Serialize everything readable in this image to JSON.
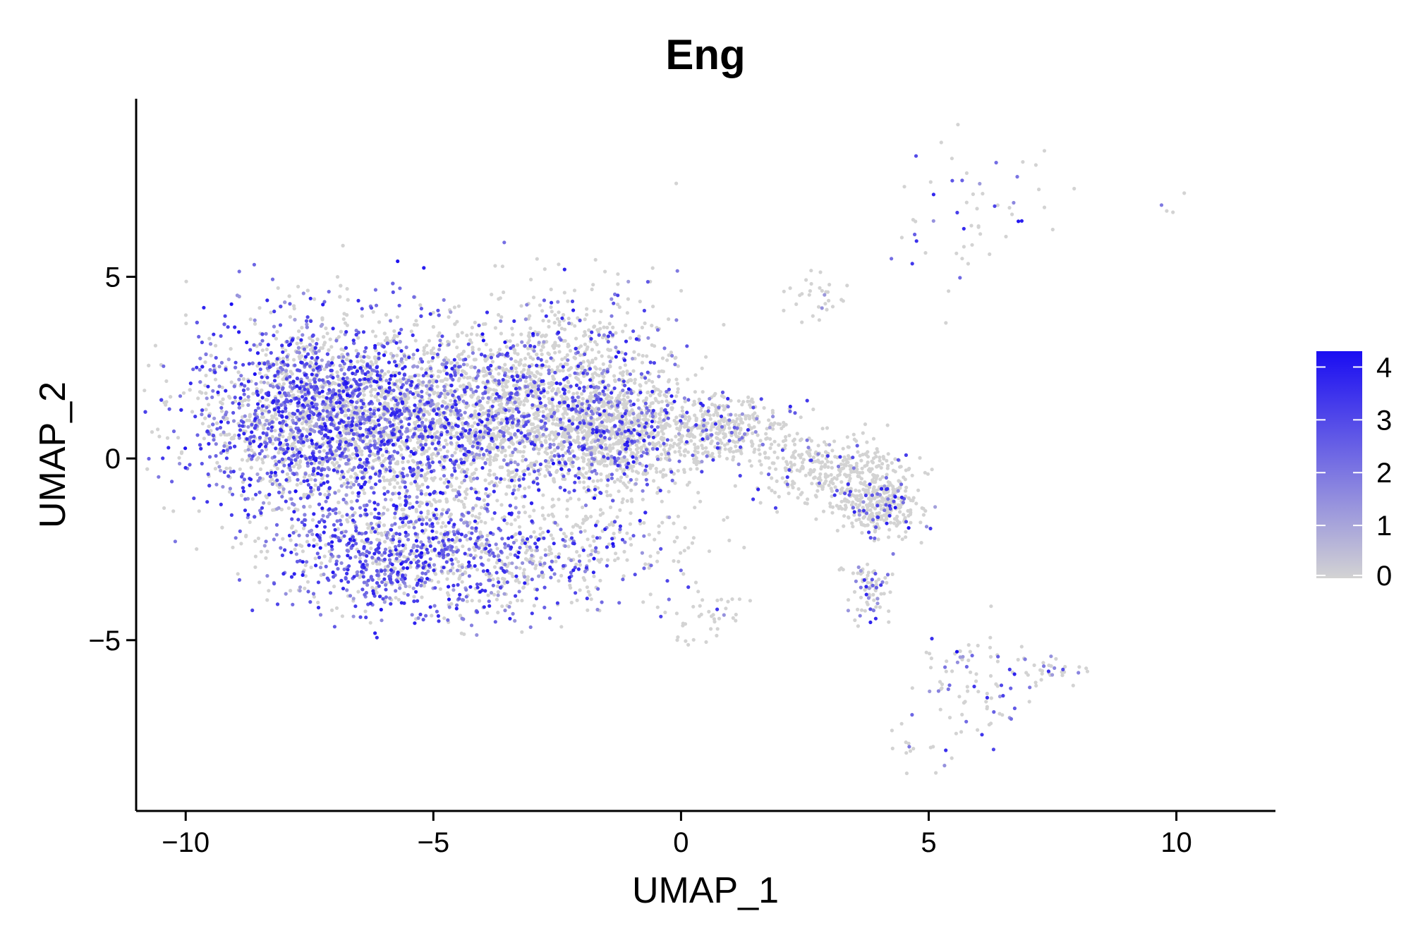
{
  "chart_data": {
    "type": "scatter",
    "title": "Eng",
    "xlabel": "UMAP_1",
    "ylabel": "UMAP_2",
    "xlim": [
      -11.0,
      12.0
    ],
    "ylim": [
      -9.7,
      9.9
    ],
    "xticks": [
      -10,
      -5,
      0,
      5,
      10
    ],
    "xtick_labels": [
      "−10",
      "−5",
      "0",
      "5",
      "10"
    ],
    "yticks": [
      -5,
      0,
      5
    ],
    "ytick_labels": [
      "−5",
      "0",
      "5"
    ],
    "grid": false,
    "color_scale": {
      "low": "#D3D3D3",
      "high": "#1A0DF2",
      "min": 0,
      "max": 4.3,
      "ticks": [
        0,
        1,
        2,
        3,
        4
      ],
      "tick_labels": [
        "0",
        "1",
        "2",
        "3",
        "4"
      ],
      "legend_position": "right"
    },
    "regions": [
      {
        "cx": -7.3,
        "cy": 1.2,
        "sx": 1.3,
        "sy": 1.3,
        "n": 2600,
        "expr": 0.55
      },
      {
        "cx": -4.3,
        "cy": 1.0,
        "sx": 1.5,
        "sy": 1.2,
        "n": 2400,
        "expr": 0.35
      },
      {
        "cx": -2.2,
        "cy": 2.0,
        "sx": 1.1,
        "sy": 1.3,
        "n": 900,
        "expr": 0.25
      },
      {
        "cx": -1.2,
        "cy": 0.6,
        "sx": 0.7,
        "sy": 0.7,
        "n": 700,
        "expr": 0.2
      },
      {
        "cx": -6.0,
        "cy": -2.6,
        "sx": 1.1,
        "sy": 0.8,
        "n": 700,
        "expr": 0.7
      },
      {
        "cx": -4.0,
        "cy": -2.9,
        "sx": 1.0,
        "sy": 0.8,
        "n": 350,
        "expr": 0.5
      },
      {
        "cx": -2.0,
        "cy": -2.4,
        "sx": 1.2,
        "sy": 0.7,
        "n": 250,
        "expr": 0.3
      },
      {
        "cx": 0.8,
        "cy": 0.8,
        "sx": 0.6,
        "sy": 0.45,
        "n": 350,
        "expr": 0.15
      },
      {
        "cx": 3.0,
        "cy": -0.3,
        "sx": 0.8,
        "sy": 0.5,
        "n": 350,
        "expr": 0.1
      },
      {
        "cx": 4.0,
        "cy": -1.3,
        "sx": 0.4,
        "sy": 0.4,
        "n": 300,
        "expr": 0.12
      },
      {
        "cx": 3.8,
        "cy": -3.6,
        "sx": 0.25,
        "sy": 0.4,
        "n": 80,
        "expr": 0.3
      },
      {
        "cx": 0.5,
        "cy": -4.4,
        "sx": 0.4,
        "sy": 0.4,
        "n": 40,
        "expr": 0.1
      },
      {
        "cx": 2.7,
        "cy": 4.4,
        "sx": 0.3,
        "sy": 0.3,
        "n": 30,
        "expr": 0.05
      },
      {
        "cx": 6.0,
        "cy": -6.2,
        "sx": 0.6,
        "sy": 0.8,
        "n": 90,
        "expr": 0.25
      },
      {
        "cx": 7.6,
        "cy": -5.8,
        "sx": 0.5,
        "sy": 0.2,
        "n": 30,
        "expr": 0.3
      },
      {
        "cx": 5.6,
        "cy": 6.8,
        "sx": 0.7,
        "sy": 1.2,
        "n": 50,
        "expr": 0.3
      },
      {
        "cx": 5.0,
        "cy": -8.0,
        "sx": 0.4,
        "sy": 0.4,
        "n": 15,
        "expr": 0.2
      },
      {
        "cx": -8.8,
        "cy": -2.4,
        "sx": 0.4,
        "sy": 0.2,
        "n": 10,
        "expr": 0.2
      },
      {
        "cx": 10.2,
        "cy": 6.9,
        "sx": 0.3,
        "sy": 0.2,
        "n": 4,
        "expr": 0.5
      },
      {
        "cx": 7.5,
        "cy": 7.0,
        "sx": 0.6,
        "sy": 0.5,
        "n": 6,
        "expr": 0.0
      }
    ]
  }
}
